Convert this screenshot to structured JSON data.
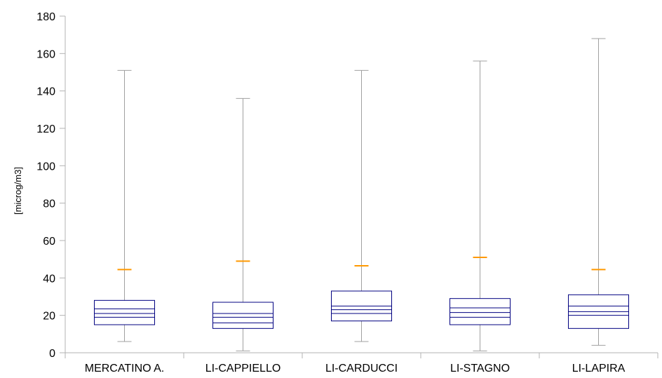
{
  "chart_data": {
    "type": "box",
    "title": "",
    "xlabel": "",
    "ylabel": "[microg/m3]",
    "ylim": [
      0,
      180
    ],
    "yticks": [
      0,
      20,
      40,
      60,
      80,
      100,
      120,
      140,
      160,
      180
    ],
    "grid": false,
    "legend": "none",
    "categories": [
      "MERCATINO A.",
      "LI-CAPPIELLO",
      "LI-CARDUCCI",
      "LI-STAGNO",
      "LI-LAPIRA"
    ],
    "boxes": [
      {
        "min": 6,
        "q1": 15,
        "inner_low": 19,
        "median": 21,
        "inner_high": 23.5,
        "q3": 28,
        "max": 151,
        "marker": 44.5
      },
      {
        "min": 1,
        "q1": 13,
        "inner_low": 16,
        "median": 19,
        "inner_high": 21,
        "q3": 27,
        "max": 136,
        "marker": 49
      },
      {
        "min": 6,
        "q1": 17,
        "inner_low": 21,
        "median": 23,
        "inner_high": 25,
        "q3": 33,
        "max": 151,
        "marker": 46.5
      },
      {
        "min": 1,
        "q1": 15,
        "inner_low": 19,
        "median": 21.5,
        "inner_high": 24,
        "q3": 29,
        "max": 156,
        "marker": 51
      },
      {
        "min": 4,
        "q1": 13,
        "inner_low": 20,
        "median": 22,
        "inner_high": 25,
        "q3": 31,
        "max": 168,
        "marker": 44.5
      }
    ],
    "colors": {
      "box_stroke": "#000080",
      "whisker": "#a0a0a0",
      "marker": "#ff9900",
      "axis": "#b3b3b3"
    }
  }
}
